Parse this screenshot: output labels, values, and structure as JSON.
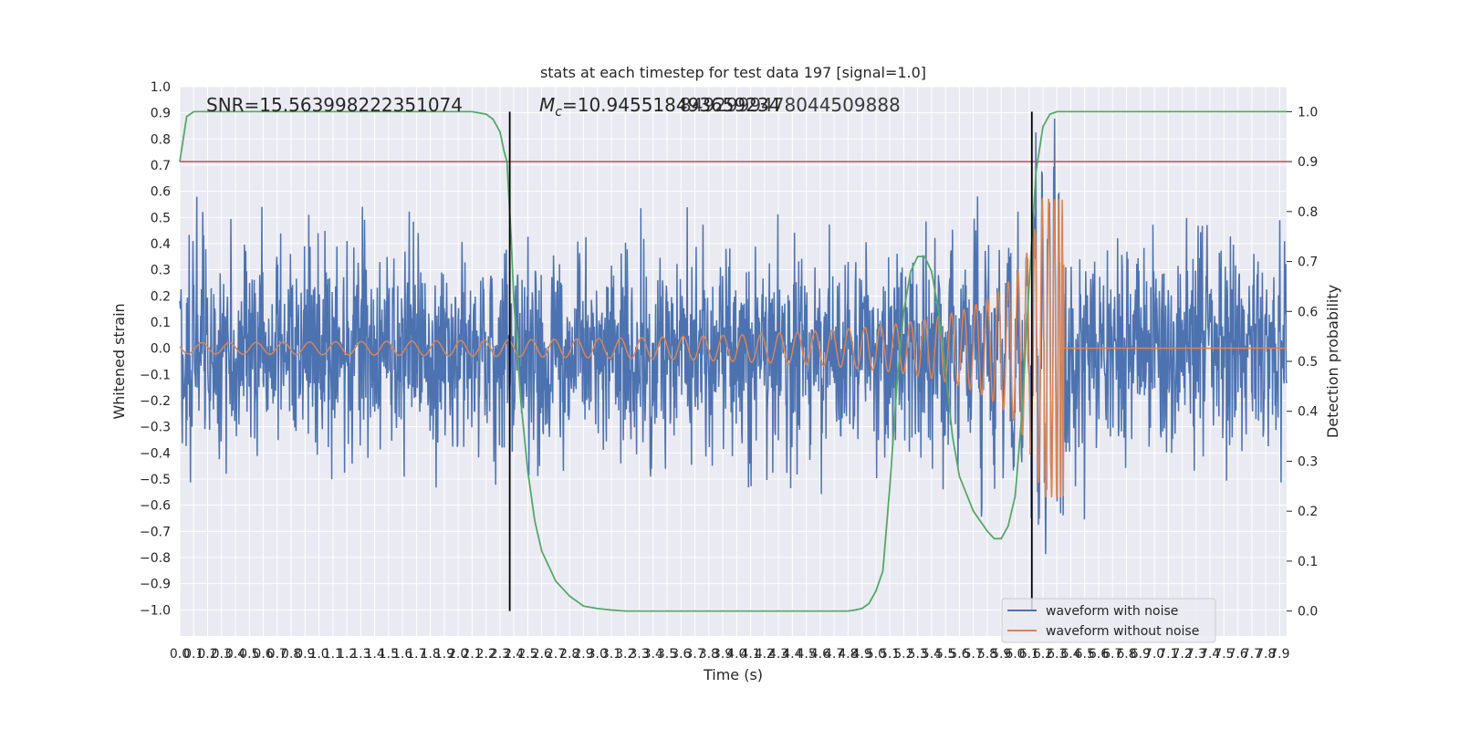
{
  "chart_data": {
    "type": "line",
    "title": "stats at each timestep for test data 197 [signal=1.0]",
    "xlabel": "Time (s)",
    "ylabel": "Whitened strain",
    "y2label": "Detection probability",
    "xlim": [
      0.0,
      7.95
    ],
    "ylim": [
      -1.1,
      1.0
    ],
    "y2lim": [
      -0.05,
      1.05
    ],
    "x_ticks": [
      0.0,
      0.1,
      0.2,
      0.3,
      0.4,
      0.5,
      0.6,
      0.7,
      0.8,
      0.9,
      1.0,
      1.1,
      1.2,
      1.3,
      1.4,
      1.5,
      1.6,
      1.7,
      1.8,
      1.9,
      2.0,
      2.1,
      2.2,
      2.3,
      2.4,
      2.5,
      2.6,
      2.7,
      2.8,
      2.9,
      3.0,
      3.1,
      3.2,
      3.3,
      3.4,
      3.5,
      3.6,
      3.7,
      3.8,
      3.9,
      4.0,
      4.1,
      4.2,
      4.3,
      4.4,
      4.5,
      4.6,
      4.7,
      4.8,
      4.9,
      5.0,
      5.1,
      5.2,
      5.3,
      5.4,
      5.5,
      5.6,
      5.7,
      5.8,
      5.9,
      6.0,
      6.1,
      6.2,
      6.3,
      6.4,
      6.5,
      6.6,
      6.7,
      6.8,
      6.9,
      7.0,
      7.1,
      7.2,
      7.3,
      7.4,
      7.5,
      7.6,
      7.7,
      7.8,
      7.9
    ],
    "y_ticks": [
      -1.0,
      -0.9,
      -0.8,
      -0.7,
      -0.6,
      -0.5,
      -0.4,
      -0.3,
      -0.2,
      -0.1,
      0.0,
      0.1,
      0.2,
      0.3,
      0.4,
      0.5,
      0.6,
      0.7,
      0.8,
      0.9,
      1.0
    ],
    "y2_ticks": [
      0.0,
      0.1,
      0.2,
      0.3,
      0.4,
      0.5,
      0.6,
      0.7,
      0.8,
      0.9,
      1.0
    ],
    "grid": true,
    "legend_position": "lower-right",
    "annotations": {
      "snr": "SNR=15.563998222351074",
      "mc_prefix": "M",
      "mc_sub": "c",
      "mc_value": "=10.945518493659234",
      "mc_overlap": "8492999478044509888"
    },
    "series": [
      {
        "name": "waveform with noise",
        "color": "#4c72b0",
        "kind": "noise",
        "std": 0.19,
        "x_range": [
          0.0,
          7.95
        ]
      },
      {
        "name": "waveform without noise",
        "color": "#dd8452",
        "kind": "chirp",
        "merger_time": 6.35,
        "peak_amplitude": 0.57,
        "x_range": [
          0.0,
          7.95
        ]
      },
      {
        "color": "#55a868",
        "axis": "y2",
        "kind": "detection_probability",
        "x": [
          0.0,
          0.05,
          0.1,
          0.2,
          0.5,
          1.0,
          1.5,
          2.0,
          2.1,
          2.2,
          2.25,
          2.3,
          2.33,
          2.35,
          2.36,
          2.38,
          2.4,
          2.45,
          2.5,
          2.55,
          2.6,
          2.7,
          2.8,
          2.9,
          3.0,
          3.1,
          3.2,
          3.5,
          4.0,
          4.5,
          4.7,
          4.8,
          4.85,
          4.9,
          4.95,
          5.0,
          5.05,
          5.1,
          5.15,
          5.2,
          5.25,
          5.3,
          5.35,
          5.4,
          5.45,
          5.5,
          5.55,
          5.6,
          5.7,
          5.8,
          5.85,
          5.9,
          5.95,
          6.0,
          6.05,
          6.1,
          6.15,
          6.2,
          6.25,
          6.3,
          6.35,
          6.5,
          7.0,
          7.5,
          7.95
        ],
        "y": [
          0.9,
          0.99,
          1.0,
          1.0,
          1.0,
          1.0,
          1.0,
          1.0,
          1.0,
          0.995,
          0.985,
          0.96,
          0.92,
          0.9,
          0.85,
          0.75,
          0.62,
          0.42,
          0.28,
          0.18,
          0.12,
          0.06,
          0.03,
          0.01,
          0.005,
          0.002,
          0.0,
          0.0,
          0.0,
          0.0,
          0.0,
          0.0,
          0.002,
          0.005,
          0.015,
          0.04,
          0.08,
          0.25,
          0.45,
          0.6,
          0.68,
          0.71,
          0.71,
          0.68,
          0.6,
          0.48,
          0.35,
          0.27,
          0.2,
          0.16,
          0.145,
          0.145,
          0.17,
          0.23,
          0.4,
          0.65,
          0.88,
          0.97,
          0.995,
          1.0,
          1.0,
          1.0,
          1.0,
          1.0,
          1.0
        ]
      },
      {
        "color": "#c44e52",
        "axis": "y2",
        "kind": "threshold",
        "value": 0.9
      }
    ],
    "vertical_lines": [
      2.37,
      6.12
    ]
  }
}
